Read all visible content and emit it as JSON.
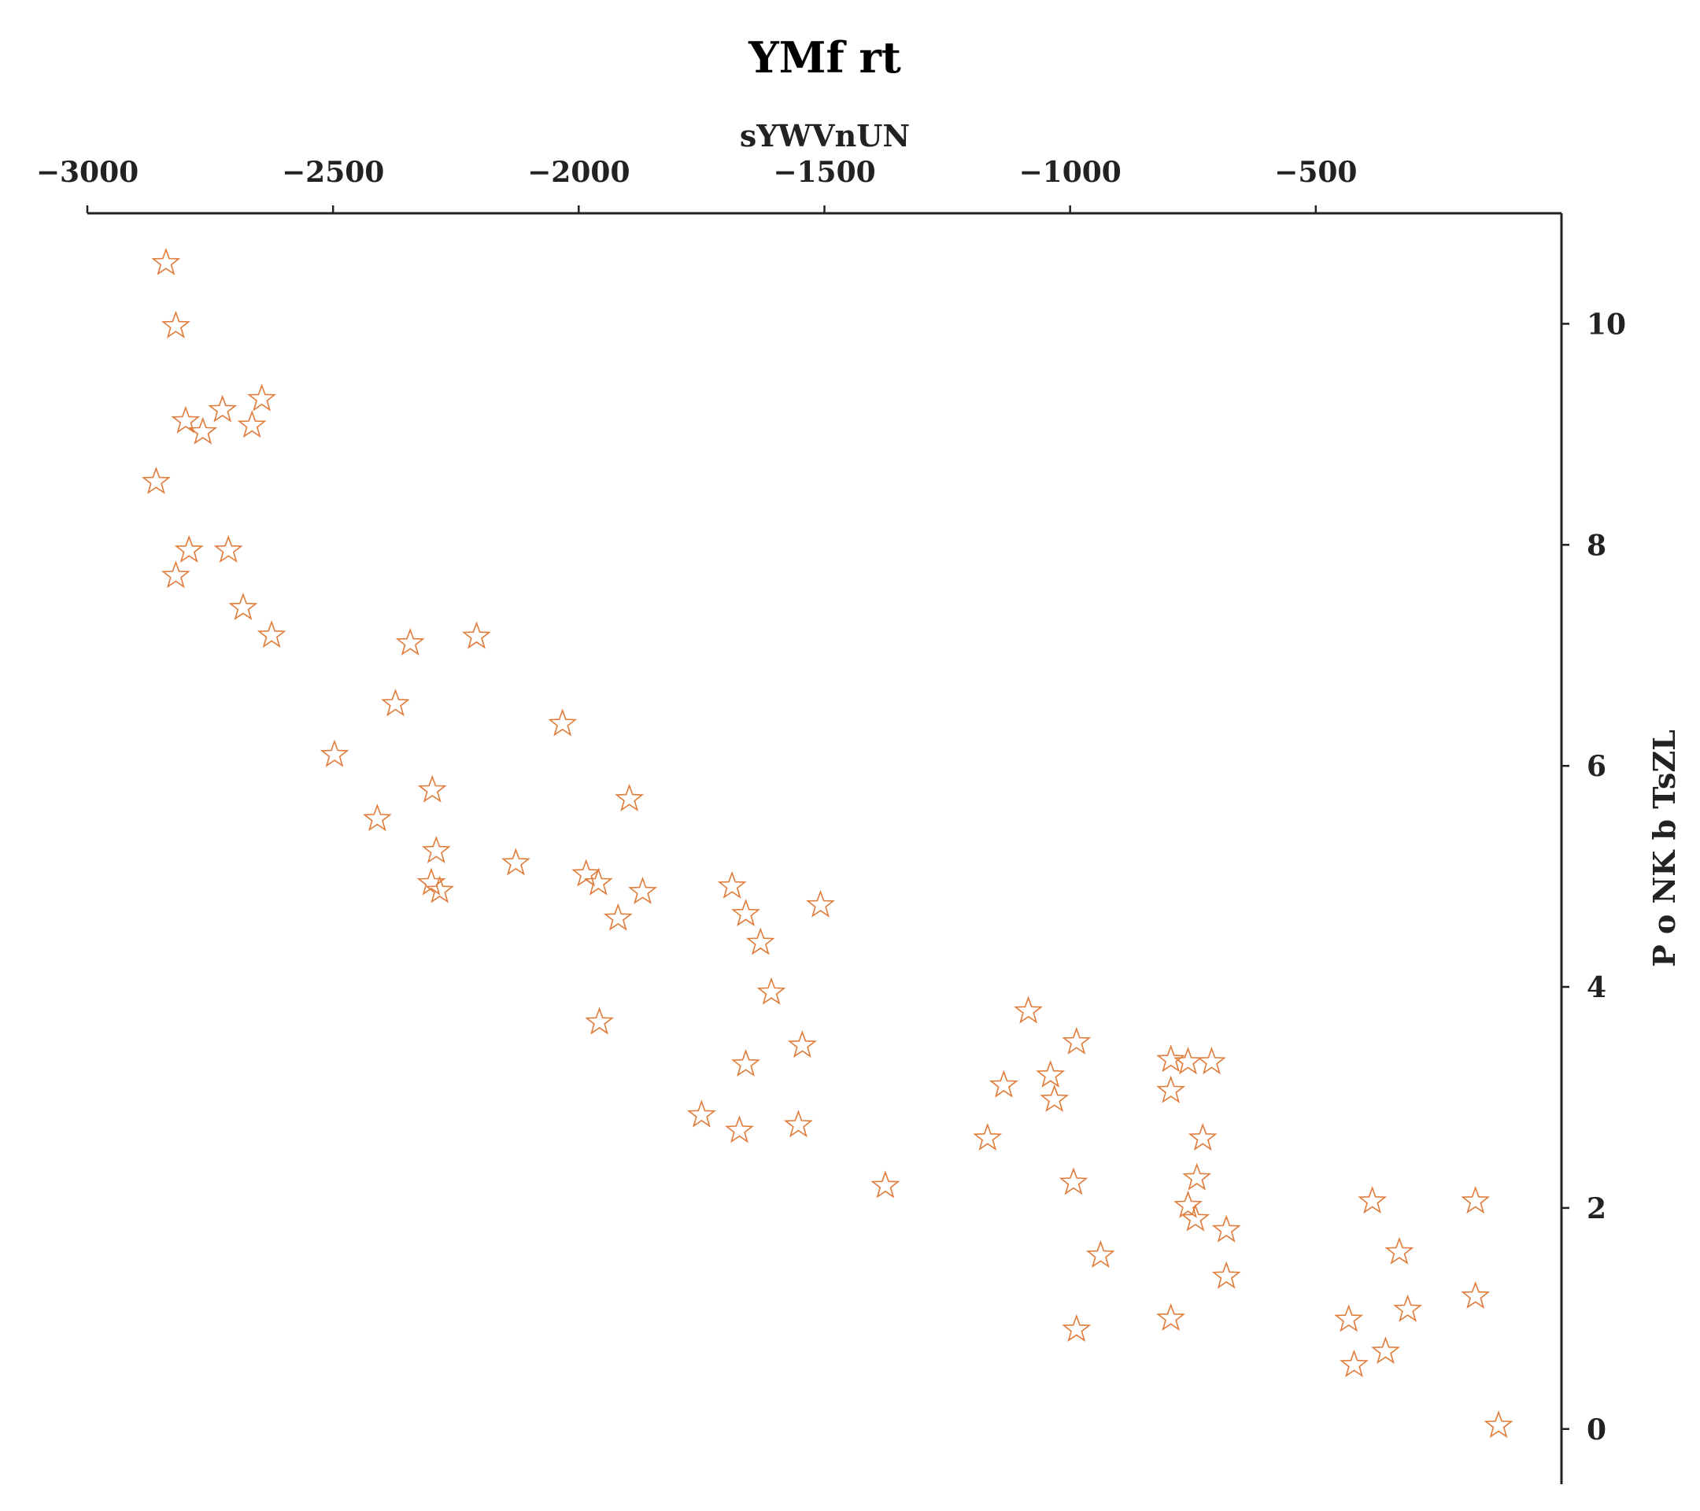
{
  "chart_data": {
    "type": "scatter",
    "title": "YMf rt",
    "xlabel": "sYWVnUN",
    "ylabel": "P o NK b TsZL",
    "xlim": [
      -3000,
      0
    ],
    "ylim": [
      -0.5,
      11.0
    ],
    "xticks": [
      -3000,
      -2500,
      -2000,
      -1500,
      -1000,
      -500
    ],
    "xtick_labels": [
      "−3000",
      "−2500",
      "−2000",
      "−1500",
      "−1000",
      "−500"
    ],
    "yticks": [
      0,
      2,
      4,
      6,
      8,
      10
    ],
    "ytick_labels": [
      "0",
      "2",
      "4",
      "6",
      "8",
      "10"
    ],
    "x_axis_position": "top",
    "y_axis_position": "right",
    "grid": false,
    "marker": "star-outline",
    "color": "#e07b39",
    "points": [
      {
        "x": -2840,
        "y": 10.55
      },
      {
        "x": -2820,
        "y": 9.98
      },
      {
        "x": -2800,
        "y": 9.12
      },
      {
        "x": -2765,
        "y": 9.02
      },
      {
        "x": -2725,
        "y": 9.22
      },
      {
        "x": -2665,
        "y": 9.08
      },
      {
        "x": -2645,
        "y": 9.32
      },
      {
        "x": -2860,
        "y": 8.57
      },
      {
        "x": -2793,
        "y": 7.95
      },
      {
        "x": -2713,
        "y": 7.95
      },
      {
        "x": -2820,
        "y": 7.72
      },
      {
        "x": -2683,
        "y": 7.43
      },
      {
        "x": -2625,
        "y": 7.18
      },
      {
        "x": -2343,
        "y": 7.11
      },
      {
        "x": -2208,
        "y": 7.17
      },
      {
        "x": -2373,
        "y": 6.56
      },
      {
        "x": -2033,
        "y": 6.38
      },
      {
        "x": -2497,
        "y": 6.1
      },
      {
        "x": -2298,
        "y": 5.78
      },
      {
        "x": -1897,
        "y": 5.7
      },
      {
        "x": -2410,
        "y": 5.52
      },
      {
        "x": -2290,
        "y": 5.23
      },
      {
        "x": -2128,
        "y": 5.12
      },
      {
        "x": -1985,
        "y": 5.02
      },
      {
        "x": -1960,
        "y": 4.94
      },
      {
        "x": -2300,
        "y": 4.94
      },
      {
        "x": -2283,
        "y": 4.87
      },
      {
        "x": -1870,
        "y": 4.86
      },
      {
        "x": -1688,
        "y": 4.91
      },
      {
        "x": -1508,
        "y": 4.74
      },
      {
        "x": -1660,
        "y": 4.66
      },
      {
        "x": -1920,
        "y": 4.62
      },
      {
        "x": -1630,
        "y": 4.4
      },
      {
        "x": -1608,
        "y": 3.95
      },
      {
        "x": -1958,
        "y": 3.68
      },
      {
        "x": -1085,
        "y": 3.78
      },
      {
        "x": -987,
        "y": 3.5
      },
      {
        "x": -1545,
        "y": 3.47
      },
      {
        "x": -1660,
        "y": 3.3
      },
      {
        "x": -795,
        "y": 3.34
      },
      {
        "x": -760,
        "y": 3.32
      },
      {
        "x": -712,
        "y": 3.32
      },
      {
        "x": -1040,
        "y": 3.2
      },
      {
        "x": -1135,
        "y": 3.11
      },
      {
        "x": -795,
        "y": 3.06
      },
      {
        "x": -1032,
        "y": 2.98
      },
      {
        "x": -1750,
        "y": 2.84
      },
      {
        "x": -1553,
        "y": 2.75
      },
      {
        "x": -1673,
        "y": 2.7
      },
      {
        "x": -1168,
        "y": 2.63
      },
      {
        "x": -730,
        "y": 2.63
      },
      {
        "x": -1376,
        "y": 2.2
      },
      {
        "x": -993,
        "y": 2.23
      },
      {
        "x": -742,
        "y": 2.27
      },
      {
        "x": -760,
        "y": 2.02
      },
      {
        "x": -745,
        "y": 1.9
      },
      {
        "x": -385,
        "y": 2.06
      },
      {
        "x": -175,
        "y": 2.06
      },
      {
        "x": -682,
        "y": 1.8
      },
      {
        "x": -938,
        "y": 1.57
      },
      {
        "x": -330,
        "y": 1.6
      },
      {
        "x": -682,
        "y": 1.38
      },
      {
        "x": -175,
        "y": 1.2
      },
      {
        "x": -313,
        "y": 1.08
      },
      {
        "x": -795,
        "y": 1.0
      },
      {
        "x": -433,
        "y": 0.99
      },
      {
        "x": -987,
        "y": 0.9
      },
      {
        "x": -358,
        "y": 0.7
      },
      {
        "x": -422,
        "y": 0.58
      },
      {
        "x": -128,
        "y": 0.03
      }
    ]
  }
}
